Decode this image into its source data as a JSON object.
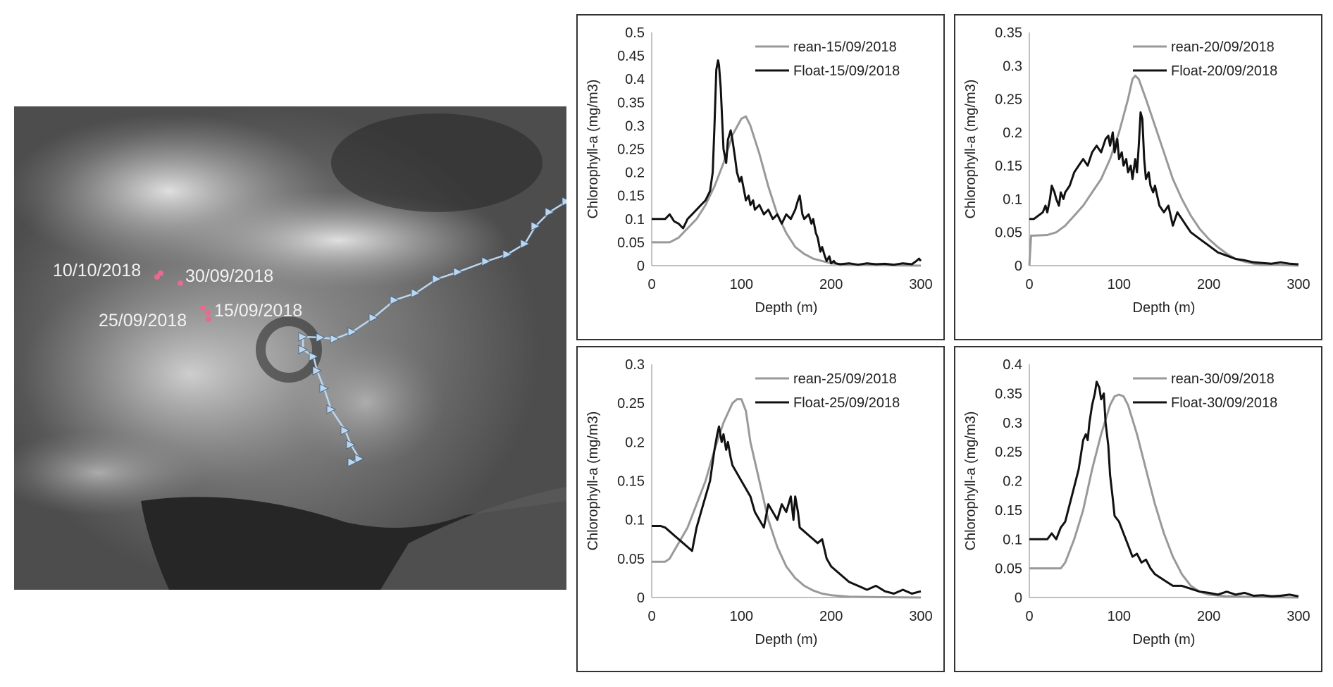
{
  "map": {
    "dates": [
      "10/10/2018",
      "30/09/2018",
      "25/09/2018",
      "15/09/2018"
    ],
    "marker_color": "#e86a8e",
    "track_color": "#bcd6ee"
  },
  "colors": {
    "rean": "#999999",
    "float": "#111111"
  },
  "chart_data": [
    {
      "type": "line",
      "xlabel": "Depth (m)",
      "ylabel": "Chlorophyll-a (mg/m3)",
      "xlim": [
        0,
        300
      ],
      "ylim": [
        0,
        0.5
      ],
      "xticks": [
        0,
        100,
        200,
        300
      ],
      "yticks": [
        0,
        0.05,
        0.1,
        0.15,
        0.2,
        0.25,
        0.3,
        0.35,
        0.4,
        0.45,
        0.5
      ],
      "ytick_labels": [
        "0",
        "0.05",
        "0.1",
        "0.15",
        "0.2",
        "0.25",
        "0.3",
        "0.35",
        "0.4",
        "0.45",
        "0.5"
      ],
      "legend_position": "top-right",
      "series": [
        {
          "name": "rean-15/09/2018",
          "x": [
            0,
            20,
            30,
            40,
            50,
            60,
            70,
            80,
            90,
            100,
            105,
            110,
            120,
            130,
            140,
            150,
            160,
            170,
            180,
            190,
            200,
            220,
            250,
            300
          ],
          "y": [
            0.05,
            0.05,
            0.06,
            0.08,
            0.1,
            0.13,
            0.17,
            0.22,
            0.28,
            0.315,
            0.32,
            0.3,
            0.24,
            0.17,
            0.11,
            0.07,
            0.04,
            0.025,
            0.015,
            0.01,
            0.005,
            0.002,
            0.001,
            0
          ]
        },
        {
          "name": "Float-15/09/2018",
          "x": [
            0,
            10,
            15,
            20,
            25,
            30,
            35,
            40,
            45,
            50,
            55,
            60,
            65,
            68,
            70,
            72,
            74,
            75,
            77,
            80,
            83,
            85,
            88,
            90,
            93,
            95,
            98,
            100,
            103,
            105,
            108,
            110,
            113,
            115,
            120,
            125,
            130,
            135,
            140,
            145,
            150,
            155,
            160,
            163,
            165,
            168,
            170,
            175,
            178,
            180,
            183,
            185,
            188,
            190,
            193,
            195,
            198,
            200,
            203,
            205,
            210,
            220,
            230,
            240,
            250,
            260,
            270,
            280,
            290,
            295,
            298,
            300
          ],
          "y": [
            0.1,
            0.1,
            0.1,
            0.11,
            0.095,
            0.09,
            0.08,
            0.1,
            0.11,
            0.12,
            0.13,
            0.14,
            0.16,
            0.2,
            0.3,
            0.42,
            0.44,
            0.43,
            0.38,
            0.25,
            0.22,
            0.27,
            0.29,
            0.27,
            0.23,
            0.2,
            0.18,
            0.19,
            0.16,
            0.14,
            0.15,
            0.13,
            0.14,
            0.12,
            0.13,
            0.11,
            0.12,
            0.1,
            0.11,
            0.09,
            0.11,
            0.1,
            0.12,
            0.14,
            0.15,
            0.11,
            0.1,
            0.11,
            0.09,
            0.1,
            0.07,
            0.06,
            0.03,
            0.04,
            0.02,
            0.01,
            0.02,
            0.005,
            0.01,
            0.005,
            0.003,
            0.005,
            0.002,
            0.005,
            0.003,
            0.004,
            0.002,
            0.005,
            0.003,
            0.01,
            0.015,
            0.01
          ]
        }
      ]
    },
    {
      "type": "line",
      "xlabel": "Depth (m)",
      "ylabel": "Chlorophyll-a (mg/m3)",
      "xlim": [
        0,
        300
      ],
      "ylim": [
        0,
        0.35
      ],
      "xticks": [
        0,
        100,
        200,
        300
      ],
      "yticks": [
        0,
        0.05,
        0.1,
        0.15,
        0.2,
        0.25,
        0.3,
        0.35
      ],
      "ytick_labels": [
        "0",
        "0.05",
        "0.1",
        "0.15",
        "0.2",
        "0.25",
        "0.3",
        "0.35"
      ],
      "legend_position": "top-right",
      "series": [
        {
          "name": "rean-20/09/2018",
          "x": [
            0,
            2,
            5,
            20,
            30,
            40,
            50,
            60,
            70,
            80,
            90,
            100,
            110,
            115,
            118,
            122,
            130,
            140,
            150,
            160,
            170,
            180,
            190,
            200,
            210,
            220,
            230,
            240,
            250,
            260,
            280,
            300
          ],
          "y": [
            0,
            0.045,
            0.045,
            0.046,
            0.05,
            0.06,
            0.075,
            0.09,
            0.11,
            0.13,
            0.16,
            0.2,
            0.25,
            0.28,
            0.285,
            0.28,
            0.25,
            0.21,
            0.17,
            0.13,
            0.1,
            0.075,
            0.055,
            0.04,
            0.028,
            0.018,
            0.01,
            0.006,
            0.003,
            0.002,
            0.001,
            0
          ]
        },
        {
          "name": "Float-20/09/2018",
          "x": [
            0,
            5,
            10,
            15,
            18,
            20,
            23,
            25,
            28,
            30,
            33,
            35,
            38,
            40,
            45,
            50,
            55,
            60,
            65,
            70,
            75,
            80,
            85,
            88,
            90,
            93,
            95,
            98,
            100,
            103,
            105,
            108,
            110,
            113,
            115,
            118,
            120,
            122,
            124,
            126,
            128,
            130,
            133,
            135,
            138,
            140,
            145,
            150,
            155,
            160,
            165,
            170,
            175,
            180,
            190,
            200,
            210,
            220,
            230,
            240,
            250,
            260,
            270,
            280,
            290,
            300
          ],
          "y": [
            0.07,
            0.07,
            0.075,
            0.08,
            0.09,
            0.08,
            0.1,
            0.12,
            0.11,
            0.1,
            0.09,
            0.11,
            0.1,
            0.11,
            0.12,
            0.14,
            0.15,
            0.16,
            0.15,
            0.17,
            0.18,
            0.17,
            0.19,
            0.195,
            0.18,
            0.2,
            0.17,
            0.19,
            0.16,
            0.17,
            0.15,
            0.16,
            0.14,
            0.15,
            0.13,
            0.16,
            0.14,
            0.18,
            0.23,
            0.22,
            0.16,
            0.13,
            0.14,
            0.12,
            0.11,
            0.12,
            0.09,
            0.08,
            0.09,
            0.06,
            0.08,
            0.07,
            0.06,
            0.05,
            0.04,
            0.03,
            0.02,
            0.015,
            0.01,
            0.008,
            0.005,
            0.004,
            0.003,
            0.005,
            0.003,
            0.002
          ]
        }
      ]
    },
    {
      "type": "line",
      "xlabel": "Depth (m)",
      "ylabel": "Chlorophyll-a (mg/m3)",
      "xlim": [
        0,
        300
      ],
      "ylim": [
        0,
        0.3
      ],
      "xticks": [
        0,
        100,
        200,
        300
      ],
      "yticks": [
        0,
        0.05,
        0.1,
        0.15,
        0.2,
        0.25,
        0.3
      ],
      "ytick_labels": [
        "0",
        "0.05",
        "0.1",
        "0.15",
        "0.2",
        "0.25",
        "0.3"
      ],
      "legend_position": "top-right",
      "series": [
        {
          "name": "rean-25/09/2018",
          "x": [
            0,
            15,
            20,
            25,
            30,
            40,
            50,
            60,
            70,
            80,
            90,
            95,
            100,
            105,
            110,
            120,
            130,
            140,
            150,
            160,
            170,
            180,
            190,
            200,
            220,
            250,
            300
          ],
          "y": [
            0.046,
            0.046,
            0.05,
            0.06,
            0.07,
            0.09,
            0.12,
            0.15,
            0.19,
            0.225,
            0.25,
            0.255,
            0.255,
            0.24,
            0.2,
            0.15,
            0.1,
            0.065,
            0.04,
            0.025,
            0.015,
            0.009,
            0.005,
            0.003,
            0.001,
            0.0005,
            0
          ]
        },
        {
          "name": "Float-25/09/2018",
          "x": [
            0,
            10,
            15,
            20,
            25,
            30,
            35,
            40,
            45,
            50,
            55,
            60,
            65,
            70,
            73,
            75,
            78,
            80,
            83,
            85,
            88,
            90,
            95,
            100,
            105,
            110,
            115,
            120,
            125,
            130,
            135,
            140,
            145,
            150,
            155,
            158,
            160,
            163,
            165,
            170,
            175,
            180,
            185,
            190,
            195,
            200,
            205,
            210,
            220,
            230,
            240,
            250,
            260,
            270,
            280,
            290,
            300
          ],
          "y": [
            0.092,
            0.092,
            0.09,
            0.085,
            0.08,
            0.075,
            0.07,
            0.065,
            0.06,
            0.09,
            0.11,
            0.13,
            0.15,
            0.19,
            0.21,
            0.22,
            0.2,
            0.21,
            0.19,
            0.2,
            0.18,
            0.17,
            0.16,
            0.15,
            0.14,
            0.13,
            0.11,
            0.1,
            0.09,
            0.12,
            0.11,
            0.1,
            0.12,
            0.11,
            0.13,
            0.1,
            0.13,
            0.11,
            0.09,
            0.085,
            0.08,
            0.075,
            0.07,
            0.075,
            0.05,
            0.04,
            0.035,
            0.03,
            0.02,
            0.015,
            0.01,
            0.015,
            0.008,
            0.005,
            0.01,
            0.005,
            0.008
          ]
        }
      ]
    },
    {
      "type": "line",
      "xlabel": "Depth (m)",
      "ylabel": "Chlorophyll-a (mg/m3)",
      "xlim": [
        0,
        300
      ],
      "ylim": [
        0,
        0.4
      ],
      "xticks": [
        0,
        100,
        200,
        300
      ],
      "yticks": [
        0,
        0.05,
        0.1,
        0.15,
        0.2,
        0.25,
        0.3,
        0.35,
        0.4
      ],
      "ytick_labels": [
        "0",
        "0.05",
        "0.1",
        "0.15",
        "0.2",
        "0.25",
        "0.3",
        "0.35",
        "0.4"
      ],
      "legend_position": "top-right",
      "series": [
        {
          "name": "rean-30/09/2018",
          "x": [
            0,
            35,
            40,
            50,
            60,
            70,
            80,
            90,
            95,
            100,
            105,
            110,
            120,
            130,
            140,
            150,
            160,
            170,
            180,
            190,
            200,
            220,
            250,
            300
          ],
          "y": [
            0.05,
            0.05,
            0.06,
            0.1,
            0.15,
            0.22,
            0.28,
            0.33,
            0.345,
            0.348,
            0.345,
            0.33,
            0.28,
            0.22,
            0.16,
            0.11,
            0.07,
            0.04,
            0.02,
            0.01,
            0.005,
            0.002,
            0.001,
            0
          ]
        },
        {
          "name": "Float-30/09/2018",
          "x": [
            0,
            10,
            20,
            25,
            30,
            35,
            40,
            45,
            50,
            55,
            60,
            63,
            65,
            67,
            70,
            73,
            75,
            78,
            80,
            83,
            85,
            88,
            90,
            93,
            95,
            100,
            105,
            110,
            115,
            120,
            125,
            130,
            135,
            140,
            150,
            160,
            170,
            180,
            190,
            200,
            210,
            220,
            230,
            240,
            250,
            260,
            270,
            280,
            290,
            300
          ],
          "y": [
            0.1,
            0.1,
            0.1,
            0.11,
            0.1,
            0.12,
            0.13,
            0.16,
            0.19,
            0.22,
            0.27,
            0.28,
            0.27,
            0.3,
            0.33,
            0.35,
            0.37,
            0.36,
            0.34,
            0.35,
            0.3,
            0.26,
            0.21,
            0.17,
            0.14,
            0.13,
            0.11,
            0.09,
            0.07,
            0.075,
            0.06,
            0.065,
            0.05,
            0.04,
            0.03,
            0.02,
            0.02,
            0.015,
            0.01,
            0.008,
            0.005,
            0.01,
            0.005,
            0.008,
            0.003,
            0.004,
            0.002,
            0.003,
            0.005,
            0.002
          ]
        }
      ]
    }
  ]
}
